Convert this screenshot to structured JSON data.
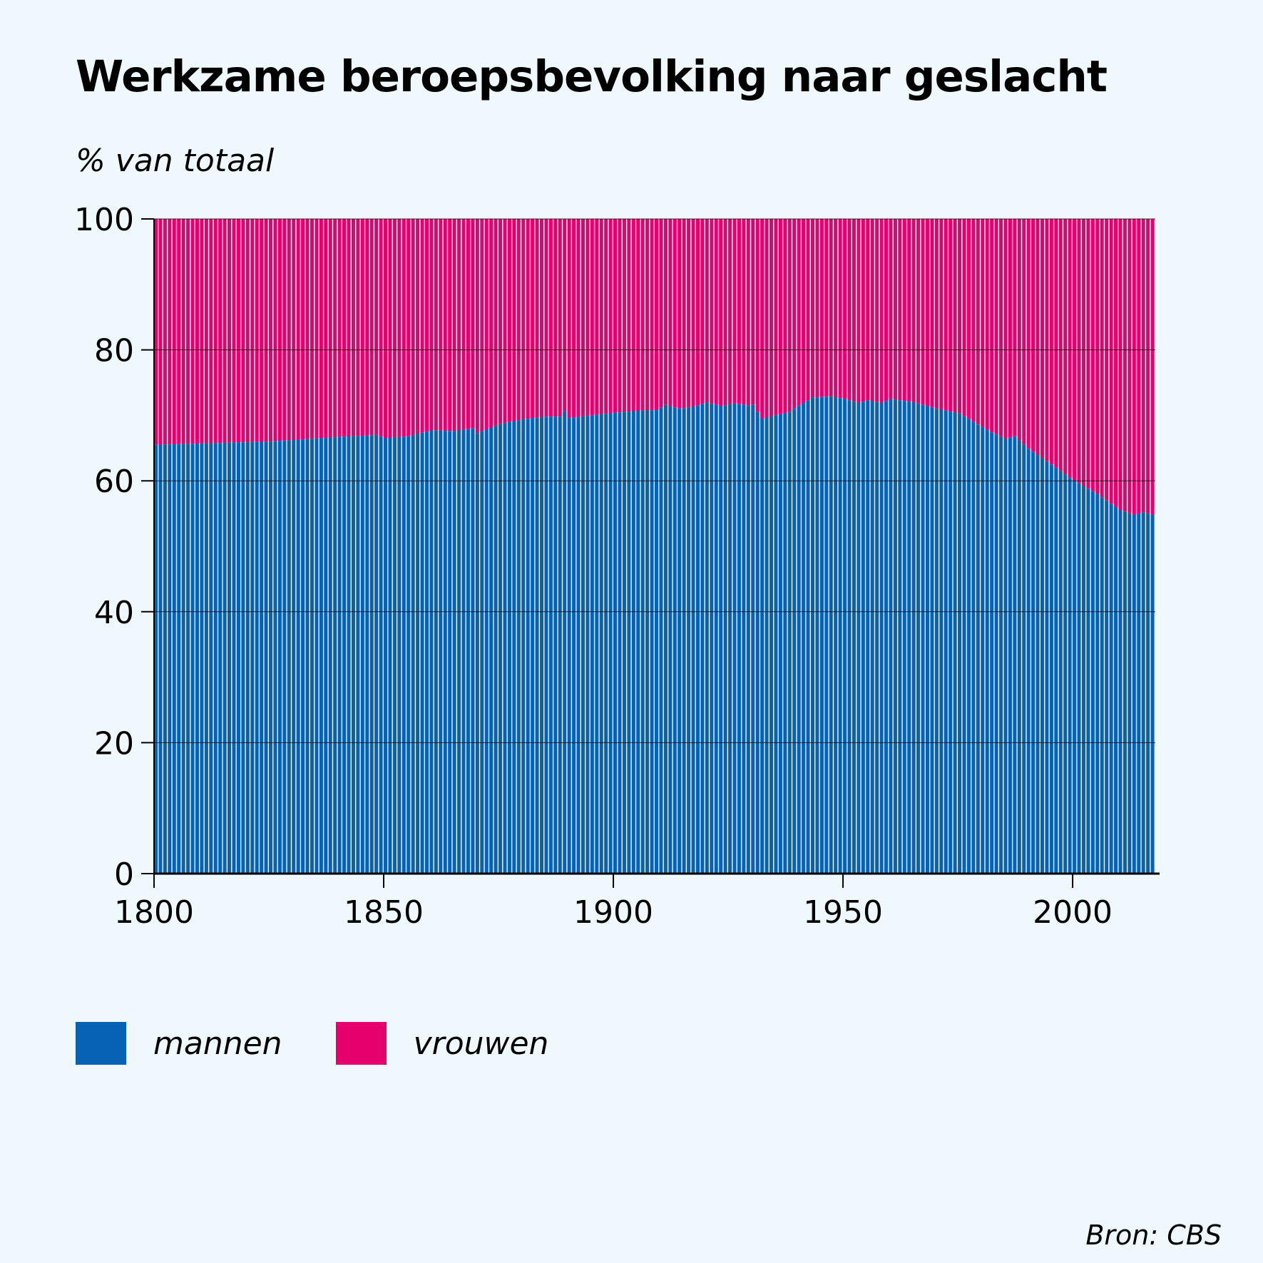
{
  "header": {
    "title": "Werkzame beroepsbevolking naar geslacht",
    "subtitle": "% van totaal"
  },
  "footer": {
    "source": "Bron: CBS"
  },
  "legend": [
    {
      "label": "mannen",
      "color": "#0761b4"
    },
    {
      "label": "vrouwen",
      "color": "#e5006e"
    }
  ],
  "colors": {
    "background": "#eef8fd",
    "mannen": "#0761b4",
    "vrouwen": "#e5006e",
    "axis": "#000000"
  },
  "chart_data": {
    "type": "bar",
    "stacked": true,
    "title": "Werkzame beroepsbevolking naar geslacht",
    "ylabel": "% van totaal",
    "xlabel": "",
    "ylim": [
      0,
      100
    ],
    "xlim": [
      1800,
      2017
    ],
    "yticks": [
      0,
      20,
      40,
      60,
      80,
      100
    ],
    "xticks": [
      1800,
      1850,
      1900,
      1950,
      2000
    ],
    "grid": "horizontal",
    "legend_position": "bottom-left",
    "x_range": [
      1800,
      2017
    ],
    "anchors": [
      [
        1800,
        65.5
      ],
      [
        1825,
        66.0
      ],
      [
        1840,
        66.7
      ],
      [
        1848,
        67.0
      ],
      [
        1850,
        66.5
      ],
      [
        1855,
        66.8
      ],
      [
        1860,
        67.7
      ],
      [
        1865,
        67.6
      ],
      [
        1869,
        68.0
      ],
      [
        1870,
        67.3
      ],
      [
        1875,
        68.7
      ],
      [
        1880,
        69.4
      ],
      [
        1885,
        69.8
      ],
      [
        1888,
        69.8
      ],
      [
        1889,
        70.6
      ],
      [
        1890,
        69.6
      ],
      [
        1895,
        70.0
      ],
      [
        1900,
        70.4
      ],
      [
        1905,
        70.7
      ],
      [
        1909,
        70.8
      ],
      [
        1911,
        71.6
      ],
      [
        1914,
        71.0
      ],
      [
        1917,
        71.3
      ],
      [
        1920,
        72.0
      ],
      [
        1923,
        71.4
      ],
      [
        1926,
        71.8
      ],
      [
        1929,
        71.5
      ],
      [
        1930,
        71.6
      ],
      [
        1931,
        70.5
      ],
      [
        1932,
        69.5
      ],
      [
        1935,
        70.0
      ],
      [
        1938,
        70.5
      ],
      [
        1940,
        71.5
      ],
      [
        1943,
        72.7
      ],
      [
        1947,
        72.9
      ],
      [
        1950,
        72.5
      ],
      [
        1953,
        71.9
      ],
      [
        1955,
        72.3
      ],
      [
        1958,
        71.9
      ],
      [
        1960,
        72.5
      ],
      [
        1965,
        72.0
      ],
      [
        1970,
        71.0
      ],
      [
        1975,
        70.3
      ],
      [
        1978,
        69.0
      ],
      [
        1982,
        67.4
      ],
      [
        1985,
        66.4
      ],
      [
        1987,
        66.8
      ],
      [
        1990,
        64.9
      ],
      [
        1995,
        62.5
      ],
      [
        2000,
        60.0
      ],
      [
        2005,
        58.0
      ],
      [
        2010,
        55.5
      ],
      [
        2013,
        54.8
      ],
      [
        2015,
        55.2
      ],
      [
        2017,
        54.8
      ]
    ],
    "series": [
      {
        "name": "mannen",
        "color": "#0761b4"
      },
      {
        "name": "vrouwen",
        "color": "#e5006e"
      }
    ]
  }
}
